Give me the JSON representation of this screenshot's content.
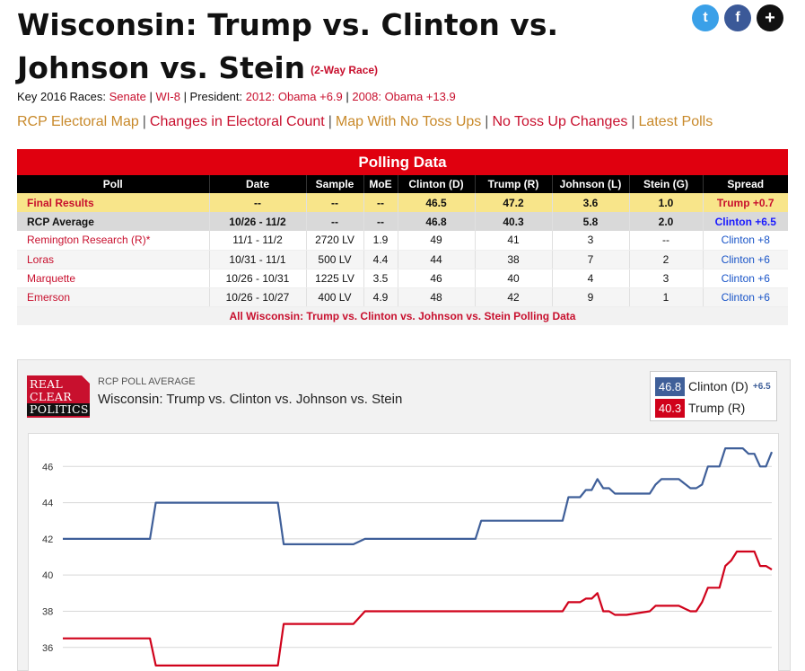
{
  "title": {
    "line1": "Wisconsin: Trump vs. Clinton vs.",
    "line2": "Johnson vs. Stein",
    "sub": "(2-Way Race)"
  },
  "social": {
    "twitter_glyph": "t",
    "facebook_glyph": "f",
    "more_glyph": "+"
  },
  "key_races": {
    "prefix": "Key 2016 Races:",
    "senate": "Senate",
    "sep1": "|",
    "wi8": "WI-8",
    "sep2": "| President:",
    "obama2012": "2012: Obama +6.9",
    "sep3": "|",
    "obama2008": "2008: Obama +13.9"
  },
  "nav": {
    "electoral_map": "RCP Electoral Map",
    "changes_count": "Changes in Electoral Count",
    "no_toss_map": "Map With No Toss Ups",
    "no_toss_changes": "No Toss Up Changes",
    "latest_polls": "Latest Polls",
    "sep": "|"
  },
  "polling": {
    "header": "Polling Data",
    "columns": [
      "Poll",
      "Date",
      "Sample",
      "MoE",
      "Clinton (D)",
      "Trump (R)",
      "Johnson (L)",
      "Stein (G)",
      "Spread"
    ],
    "final": [
      "Final Results",
      "--",
      "--",
      "--",
      "46.5",
      "47.2",
      "3.6",
      "1.0",
      "Trump +0.7"
    ],
    "average": [
      "RCP Average",
      "10/26 - 11/2",
      "--",
      "--",
      "46.8",
      "40.3",
      "5.8",
      "2.0",
      "Clinton +6.5"
    ],
    "rows": [
      [
        "Remington Research (R)*",
        "11/1 - 11/2",
        "2720 LV",
        "1.9",
        "49",
        "41",
        "3",
        "--",
        "Clinton +8"
      ],
      [
        "Loras",
        "10/31 - 11/1",
        "500 LV",
        "4.4",
        "44",
        "38",
        "7",
        "2",
        "Clinton +6"
      ],
      [
        "Marquette",
        "10/26 - 10/31",
        "1225 LV",
        "3.5",
        "46",
        "40",
        "4",
        "3",
        "Clinton +6"
      ],
      [
        "Emerson",
        "10/26 - 10/27",
        "400 LV",
        "4.9",
        "48",
        "42",
        "9",
        "1",
        "Clinton +6"
      ]
    ],
    "all_link": "All Wisconsin: Trump vs. Clinton vs. Johnson vs. Stein Polling Data"
  },
  "chart": {
    "logo_line1": "REAL",
    "logo_line2": "CLEAR",
    "logo_line3": "POLITICS",
    "label": "RCP POLL AVERAGE",
    "title": "Wisconsin: Trump vs. Clinton vs. Johnson vs. Stein",
    "legend": {
      "clinton_value": "46.8",
      "clinton_name": "Clinton (D)",
      "clinton_spread": "+6.5",
      "trump_value": "40.3",
      "trump_name": "Trump (R)"
    }
  },
  "chart_data": {
    "type": "line",
    "title": "Wisconsin: Trump vs. Clinton vs. Johnson vs. Stein",
    "xlabel": "",
    "ylabel": "",
    "yticks": [
      36,
      38,
      40,
      42,
      44,
      46
    ],
    "ylim": [
      34.6,
      47.8
    ],
    "x": [
      0,
      12,
      15,
      16,
      35,
      37,
      38,
      50,
      52,
      60,
      61,
      71,
      72,
      86,
      87,
      89,
      90,
      91,
      92,
      93,
      94,
      95,
      96,
      97,
      101,
      102,
      103,
      104,
      106,
      108,
      109,
      110,
      111,
      112,
      113,
      114,
      115,
      116,
      117,
      118,
      119,
      120,
      121,
      122
    ],
    "series": [
      {
        "name": "Clinton (D)",
        "color": "#3f5f99",
        "values": [
          42.0,
          42.0,
          42.0,
          44.0,
          44.0,
          44.0,
          41.7,
          41.7,
          42.0,
          42.0,
          42.0,
          42.0,
          43.0,
          43.0,
          44.3,
          44.3,
          44.7,
          44.7,
          45.3,
          44.8,
          44.8,
          44.5,
          44.5,
          44.5,
          44.5,
          45.0,
          45.3,
          45.3,
          45.3,
          44.8,
          44.8,
          45.0,
          46.0,
          46.0,
          46.0,
          47.0,
          47.0,
          47.0,
          47.0,
          46.7,
          46.7,
          46.0,
          46.0,
          46.8
        ]
      },
      {
        "name": "Trump (R)",
        "color": "#d0021b",
        "values": [
          36.5,
          36.5,
          36.5,
          35.0,
          35.0,
          35.0,
          37.3,
          37.3,
          38.0,
          38.0,
          38.0,
          38.0,
          38.0,
          38.0,
          38.5,
          38.5,
          38.7,
          38.7,
          39.0,
          38.0,
          38.0,
          37.8,
          37.8,
          37.8,
          38.0,
          38.3,
          38.3,
          38.3,
          38.3,
          38.0,
          38.0,
          38.5,
          39.3,
          39.3,
          39.3,
          40.5,
          40.8,
          41.3,
          41.3,
          41.3,
          41.3,
          40.5,
          40.5,
          40.3
        ]
      }
    ]
  }
}
